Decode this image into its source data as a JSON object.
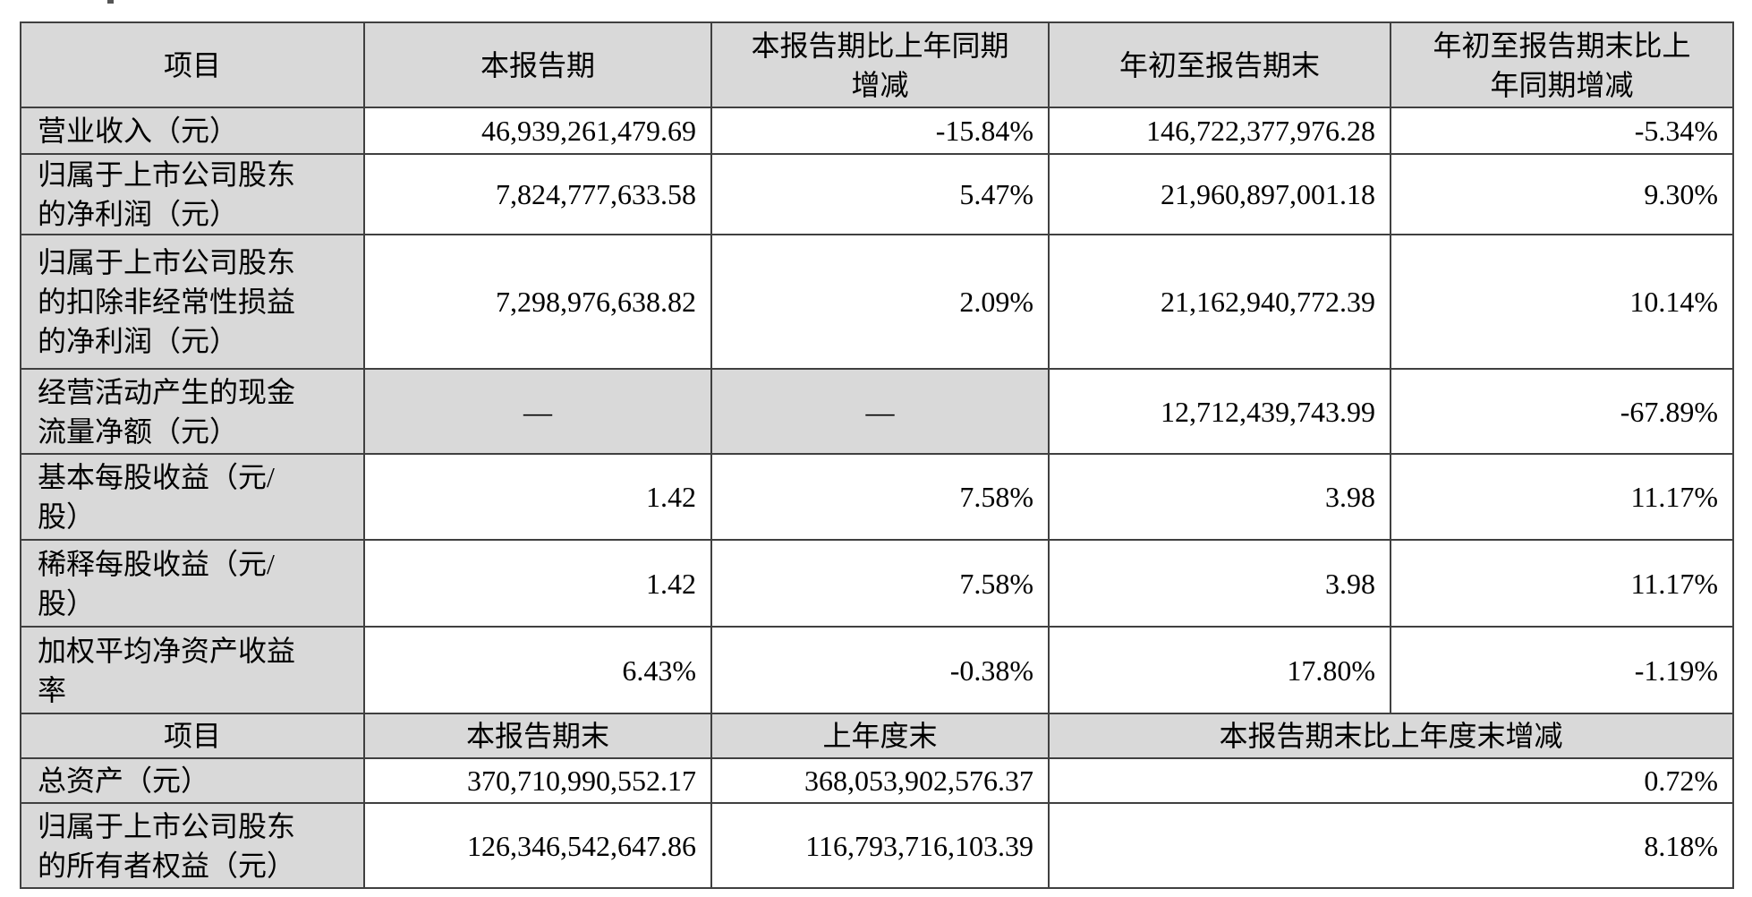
{
  "page": {
    "cropped_text_fragment": "",
    "colors": {
      "header_bg": "#d9d9d9",
      "border": "#404040",
      "text": "#000000",
      "background": "#ffffff"
    }
  },
  "section1": {
    "headers": [
      "项目",
      "本报告期",
      "本报告期比上年同期\n增减",
      "年初至报告期末",
      "年初至报告期末比上\n年同期增减"
    ],
    "rows": [
      {
        "item": "营业收入（元）",
        "values": [
          "46,939,261,479.69",
          "-15.84%",
          "146,722,377,976.28",
          "-5.34%"
        ]
      },
      {
        "item": "归属于上市公司股东\n的净利润（元）",
        "values": [
          "7,824,777,633.58",
          "5.47%",
          "21,960,897,001.18",
          "9.30%"
        ]
      },
      {
        "item": "归属于上市公司股东\n的扣除非经常性损益\n的净利润（元）",
        "values": [
          "7,298,976,638.82",
          "2.09%",
          "21,162,940,772.39",
          "10.14%"
        ]
      },
      {
        "item": "经营活动产生的现金\n流量净额（元）",
        "values": [
          "—",
          "—",
          "12,712,439,743.99",
          "-67.89%"
        ]
      },
      {
        "item": "基本每股收益（元/\n股）",
        "values": [
          "1.42",
          "7.58%",
          "3.98",
          "11.17%"
        ]
      },
      {
        "item": "稀释每股收益（元/\n股）",
        "values": [
          "1.42",
          "7.58%",
          "3.98",
          "11.17%"
        ]
      },
      {
        "item": "加权平均净资产收益\n率",
        "values": [
          "6.43%",
          "-0.38%",
          "17.80%",
          "-1.19%"
        ]
      }
    ]
  },
  "section2": {
    "headers": [
      "项目",
      "本报告期末",
      "上年度末",
      "本报告期末比上年度末增减"
    ],
    "rows": [
      {
        "item": "总资产（元）",
        "values": [
          "370,710,990,552.17",
          "368,053,902,576.37",
          "0.72%"
        ]
      },
      {
        "item": "归属于上市公司股东\n的所有者权益（元）",
        "values": [
          "126,346,542,647.86",
          "116,793,716,103.39",
          "8.18%"
        ]
      }
    ]
  }
}
